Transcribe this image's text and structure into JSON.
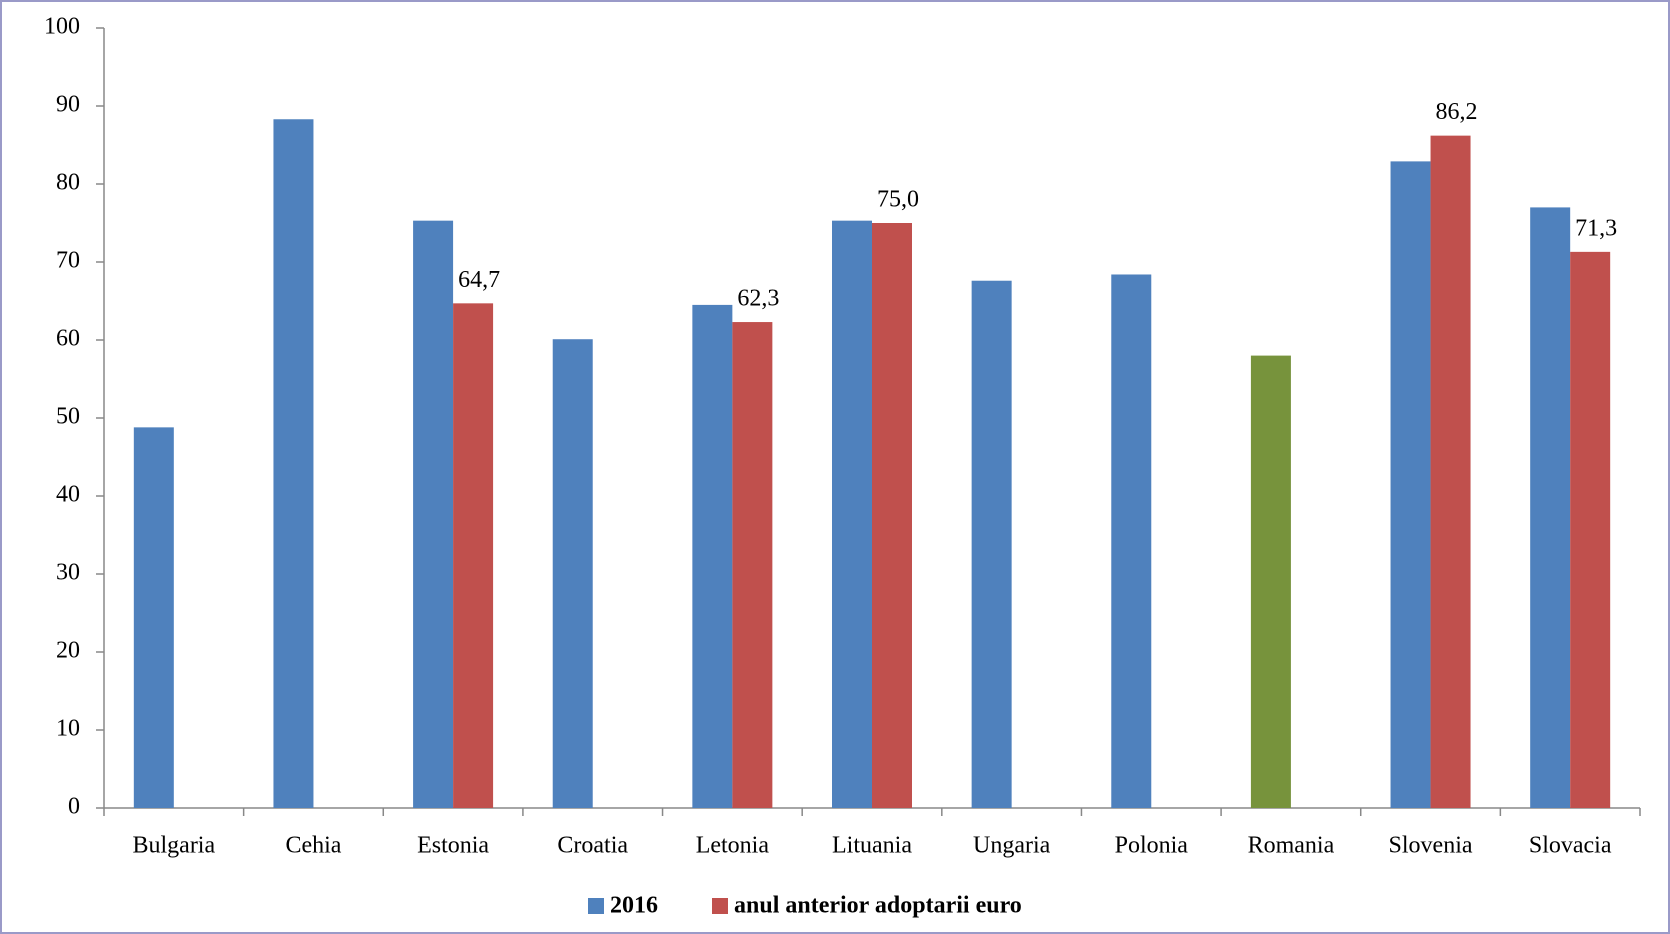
{
  "chart_data": {
    "type": "bar",
    "categories": [
      "Bulgaria",
      "Cehia",
      "Estonia",
      "Croatia",
      "Letonia",
      "Lituania",
      "Ungaria",
      "Polonia",
      "Romania",
      "Slovenia",
      "Slovacia"
    ],
    "series": [
      {
        "name": "2016",
        "color": "#4f81bd",
        "point_colors": [
          "#4f81bd",
          "#4f81bd",
          "#4f81bd",
          "#4f81bd",
          "#4f81bd",
          "#4f81bd",
          "#4f81bd",
          "#4f81bd",
          "#77933c",
          "#4f81bd",
          "#4f81bd"
        ],
        "values": [
          48.8,
          88.3,
          75.3,
          60.1,
          64.5,
          75.3,
          67.6,
          68.4,
          58.0,
          82.9,
          77.0
        ]
      },
      {
        "name": "anul anterior adoptarii euro",
        "color": "#c0504d",
        "values": [
          null,
          null,
          64.7,
          null,
          62.3,
          75.0,
          null,
          null,
          null,
          86.2,
          71.3
        ],
        "value_labels": [
          null,
          null,
          "64,7",
          null,
          "62,3",
          "75,0",
          null,
          null,
          null,
          "86,2",
          "71,3"
        ]
      }
    ],
    "ylim": [
      0,
      100
    ],
    "yticks": [
      0,
      10,
      20,
      30,
      40,
      50,
      60,
      70,
      80,
      90,
      100
    ],
    "legend": "bottom"
  }
}
